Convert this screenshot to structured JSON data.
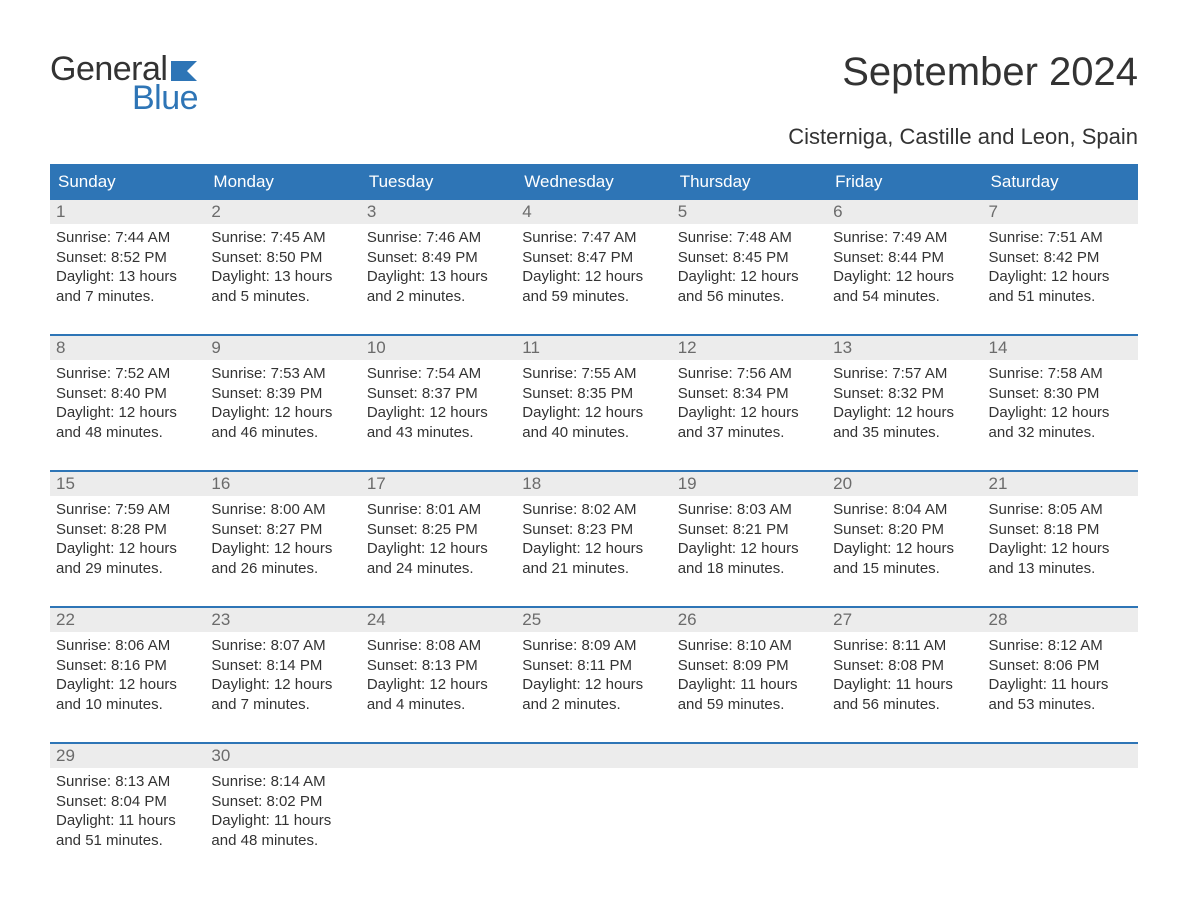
{
  "logo": {
    "text_general": "General",
    "text_blue": "Blue",
    "flag_color": "#2e75b6"
  },
  "title": "September 2024",
  "subtitle": "Cisterniga, Castille and Leon, Spain",
  "colors": {
    "header_bg": "#2e75b6",
    "header_text": "#ffffff",
    "daynum_bg": "#ececec",
    "daynum_text": "#6b6b6b",
    "body_text": "#333333",
    "rule": "#2e75b6",
    "background": "#ffffff"
  },
  "typography": {
    "title_fontsize": 40,
    "subtitle_fontsize": 22,
    "dayhead_fontsize": 17,
    "daynum_fontsize": 17,
    "body_fontsize": 15,
    "font_family": "Arial"
  },
  "day_headers": [
    "Sunday",
    "Monday",
    "Tuesday",
    "Wednesday",
    "Thursday",
    "Friday",
    "Saturday"
  ],
  "weeks": [
    [
      {
        "num": "1",
        "sunrise": "Sunrise: 7:44 AM",
        "sunset": "Sunset: 8:52 PM",
        "daylight1": "Daylight: 13 hours",
        "daylight2": "and 7 minutes."
      },
      {
        "num": "2",
        "sunrise": "Sunrise: 7:45 AM",
        "sunset": "Sunset: 8:50 PM",
        "daylight1": "Daylight: 13 hours",
        "daylight2": "and 5 minutes."
      },
      {
        "num": "3",
        "sunrise": "Sunrise: 7:46 AM",
        "sunset": "Sunset: 8:49 PM",
        "daylight1": "Daylight: 13 hours",
        "daylight2": "and 2 minutes."
      },
      {
        "num": "4",
        "sunrise": "Sunrise: 7:47 AM",
        "sunset": "Sunset: 8:47 PM",
        "daylight1": "Daylight: 12 hours",
        "daylight2": "and 59 minutes."
      },
      {
        "num": "5",
        "sunrise": "Sunrise: 7:48 AM",
        "sunset": "Sunset: 8:45 PM",
        "daylight1": "Daylight: 12 hours",
        "daylight2": "and 56 minutes."
      },
      {
        "num": "6",
        "sunrise": "Sunrise: 7:49 AM",
        "sunset": "Sunset: 8:44 PM",
        "daylight1": "Daylight: 12 hours",
        "daylight2": "and 54 minutes."
      },
      {
        "num": "7",
        "sunrise": "Sunrise: 7:51 AM",
        "sunset": "Sunset: 8:42 PM",
        "daylight1": "Daylight: 12 hours",
        "daylight2": "and 51 minutes."
      }
    ],
    [
      {
        "num": "8",
        "sunrise": "Sunrise: 7:52 AM",
        "sunset": "Sunset: 8:40 PM",
        "daylight1": "Daylight: 12 hours",
        "daylight2": "and 48 minutes."
      },
      {
        "num": "9",
        "sunrise": "Sunrise: 7:53 AM",
        "sunset": "Sunset: 8:39 PM",
        "daylight1": "Daylight: 12 hours",
        "daylight2": "and 46 minutes."
      },
      {
        "num": "10",
        "sunrise": "Sunrise: 7:54 AM",
        "sunset": "Sunset: 8:37 PM",
        "daylight1": "Daylight: 12 hours",
        "daylight2": "and 43 minutes."
      },
      {
        "num": "11",
        "sunrise": "Sunrise: 7:55 AM",
        "sunset": "Sunset: 8:35 PM",
        "daylight1": "Daylight: 12 hours",
        "daylight2": "and 40 minutes."
      },
      {
        "num": "12",
        "sunrise": "Sunrise: 7:56 AM",
        "sunset": "Sunset: 8:34 PM",
        "daylight1": "Daylight: 12 hours",
        "daylight2": "and 37 minutes."
      },
      {
        "num": "13",
        "sunrise": "Sunrise: 7:57 AM",
        "sunset": "Sunset: 8:32 PM",
        "daylight1": "Daylight: 12 hours",
        "daylight2": "and 35 minutes."
      },
      {
        "num": "14",
        "sunrise": "Sunrise: 7:58 AM",
        "sunset": "Sunset: 8:30 PM",
        "daylight1": "Daylight: 12 hours",
        "daylight2": "and 32 minutes."
      }
    ],
    [
      {
        "num": "15",
        "sunrise": "Sunrise: 7:59 AM",
        "sunset": "Sunset: 8:28 PM",
        "daylight1": "Daylight: 12 hours",
        "daylight2": "and 29 minutes."
      },
      {
        "num": "16",
        "sunrise": "Sunrise: 8:00 AM",
        "sunset": "Sunset: 8:27 PM",
        "daylight1": "Daylight: 12 hours",
        "daylight2": "and 26 minutes."
      },
      {
        "num": "17",
        "sunrise": "Sunrise: 8:01 AM",
        "sunset": "Sunset: 8:25 PM",
        "daylight1": "Daylight: 12 hours",
        "daylight2": "and 24 minutes."
      },
      {
        "num": "18",
        "sunrise": "Sunrise: 8:02 AM",
        "sunset": "Sunset: 8:23 PM",
        "daylight1": "Daylight: 12 hours",
        "daylight2": "and 21 minutes."
      },
      {
        "num": "19",
        "sunrise": "Sunrise: 8:03 AM",
        "sunset": "Sunset: 8:21 PM",
        "daylight1": "Daylight: 12 hours",
        "daylight2": "and 18 minutes."
      },
      {
        "num": "20",
        "sunrise": "Sunrise: 8:04 AM",
        "sunset": "Sunset: 8:20 PM",
        "daylight1": "Daylight: 12 hours",
        "daylight2": "and 15 minutes."
      },
      {
        "num": "21",
        "sunrise": "Sunrise: 8:05 AM",
        "sunset": "Sunset: 8:18 PM",
        "daylight1": "Daylight: 12 hours",
        "daylight2": "and 13 minutes."
      }
    ],
    [
      {
        "num": "22",
        "sunrise": "Sunrise: 8:06 AM",
        "sunset": "Sunset: 8:16 PM",
        "daylight1": "Daylight: 12 hours",
        "daylight2": "and 10 minutes."
      },
      {
        "num": "23",
        "sunrise": "Sunrise: 8:07 AM",
        "sunset": "Sunset: 8:14 PM",
        "daylight1": "Daylight: 12 hours",
        "daylight2": "and 7 minutes."
      },
      {
        "num": "24",
        "sunrise": "Sunrise: 8:08 AM",
        "sunset": "Sunset: 8:13 PM",
        "daylight1": "Daylight: 12 hours",
        "daylight2": "and 4 minutes."
      },
      {
        "num": "25",
        "sunrise": "Sunrise: 8:09 AM",
        "sunset": "Sunset: 8:11 PM",
        "daylight1": "Daylight: 12 hours",
        "daylight2": "and 2 minutes."
      },
      {
        "num": "26",
        "sunrise": "Sunrise: 8:10 AM",
        "sunset": "Sunset: 8:09 PM",
        "daylight1": "Daylight: 11 hours",
        "daylight2": "and 59 minutes."
      },
      {
        "num": "27",
        "sunrise": "Sunrise: 8:11 AM",
        "sunset": "Sunset: 8:08 PM",
        "daylight1": "Daylight: 11 hours",
        "daylight2": "and 56 minutes."
      },
      {
        "num": "28",
        "sunrise": "Sunrise: 8:12 AM",
        "sunset": "Sunset: 8:06 PM",
        "daylight1": "Daylight: 11 hours",
        "daylight2": "and 53 minutes."
      }
    ],
    [
      {
        "num": "29",
        "sunrise": "Sunrise: 8:13 AM",
        "sunset": "Sunset: 8:04 PM",
        "daylight1": "Daylight: 11 hours",
        "daylight2": "and 51 minutes."
      },
      {
        "num": "30",
        "sunrise": "Sunrise: 8:14 AM",
        "sunset": "Sunset: 8:02 PM",
        "daylight1": "Daylight: 11 hours",
        "daylight2": "and 48 minutes."
      },
      null,
      null,
      null,
      null,
      null
    ]
  ]
}
